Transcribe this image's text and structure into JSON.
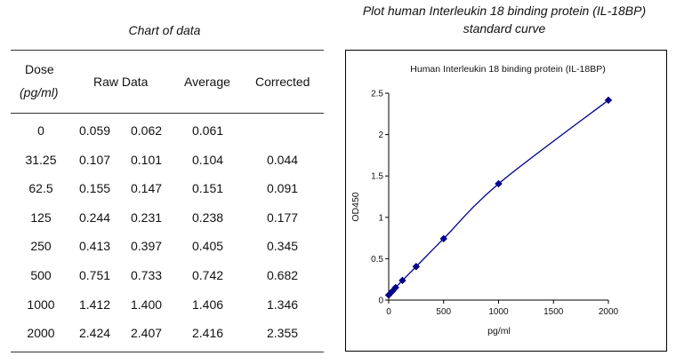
{
  "table": {
    "title": "Chart of data",
    "headers": {
      "dose": "Dose",
      "dose_unit": "(pg/ml)",
      "raw": "Raw Data",
      "average": "Average",
      "corrected": "Corrected"
    },
    "rows": [
      {
        "dose": "0",
        "raw1": "0.059",
        "raw2": "0.062",
        "average": "0.061",
        "corrected": ""
      },
      {
        "dose": "31.25",
        "raw1": "0.107",
        "raw2": "0.101",
        "average": "0.104",
        "corrected": "0.044"
      },
      {
        "dose": "62.5",
        "raw1": "0.155",
        "raw2": "0.147",
        "average": "0.151",
        "corrected": "0.091"
      },
      {
        "dose": "125",
        "raw1": "0.244",
        "raw2": "0.231",
        "average": "0.238",
        "corrected": "0.177"
      },
      {
        "dose": "250",
        "raw1": "0.413",
        "raw2": "0.397",
        "average": "0.405",
        "corrected": "0.345"
      },
      {
        "dose": "500",
        "raw1": "0.751",
        "raw2": "0.733",
        "average": "0.742",
        "corrected": "0.682"
      },
      {
        "dose": "1000",
        "raw1": "1.412",
        "raw2": "1.400",
        "average": "1.406",
        "corrected": "1.346"
      },
      {
        "dose": "2000",
        "raw1": "2.424",
        "raw2": "2.407",
        "average": "2.416",
        "corrected": "2.355"
      }
    ]
  },
  "plot_title_line1": "Plot human Interleukin 18 binding protein (IL-18BP)",
  "plot_title_line2": "standard curve",
  "chart_data": {
    "type": "line",
    "title": "Human Interleukin 18 binding protein (IL-18BP)",
    "xlabel": "pg/ml",
    "ylabel": "OD450",
    "xlim": [
      0,
      2000
    ],
    "ylim": [
      0,
      2.5
    ],
    "x_ticks": [
      0,
      500,
      1000,
      1500,
      2000
    ],
    "y_ticks": [
      0,
      0.5,
      1,
      1.5,
      2,
      2.5
    ],
    "x_tick_labels": [
      "0",
      "500",
      "1000",
      "1500",
      "2000"
    ],
    "y_tick_labels": [
      "0",
      "0.5",
      "1",
      "1.5",
      "2",
      "2.5"
    ],
    "grid": false,
    "series": [
      {
        "x": [
          0,
          31.25,
          62.5,
          125,
          250,
          500,
          1000,
          2000
        ],
        "y": [
          0.061,
          0.104,
          0.151,
          0.238,
          0.405,
          0.742,
          1.406,
          2.416
        ]
      }
    ],
    "color": "#00008B"
  }
}
